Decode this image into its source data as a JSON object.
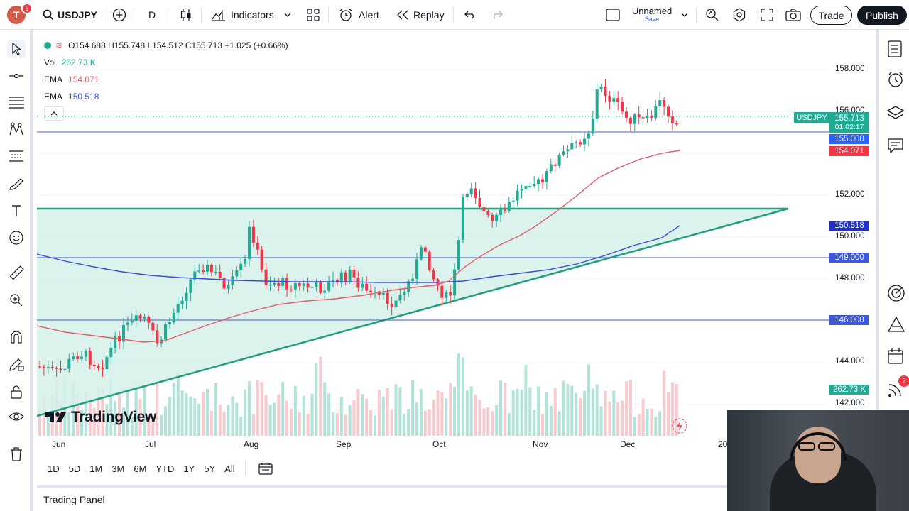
{
  "toolbar": {
    "avatar_letter": "T",
    "avatar_badge": "6",
    "symbol": "USDJPY",
    "interval": "D",
    "indicators_label": "Indicators",
    "alert_label": "Alert",
    "replay_label": "Replay",
    "layout_name": "Unnamed",
    "layout_save": "Save",
    "trade_label": "Trade",
    "publish_label": "Publish"
  },
  "legend": {
    "ohlc": "O154.688 H155.748 L154.512 C155.713 +1.025 (+0.66%)",
    "vol_label": "Vol",
    "vol_value": "262.73 K",
    "ema1_label": "EMA",
    "ema1_value": "154.071",
    "ema2_label": "EMA",
    "ema2_value": "150.518"
  },
  "price_axis": {
    "labels": [
      "158.000",
      "156.000",
      "152.000",
      "150.000",
      "148.000",
      "144.000",
      "142.000"
    ],
    "tags": {
      "symbol": "USDJPY",
      "last": "155.713",
      "countdown": "01:02:17",
      "line_155": "155.000",
      "ema_fast": "154.071",
      "ema_slow": "150.518",
      "line_149": "149.000",
      "line_146": "146.000",
      "volume": "262.73 K"
    }
  },
  "time_axis": {
    "labels": [
      "Jun",
      "Jul",
      "Aug",
      "Sep",
      "Oct",
      "Nov",
      "Dec",
      "20"
    ]
  },
  "watermark": "TradingView",
  "ranges": [
    "1D",
    "5D",
    "1M",
    "3M",
    "6M",
    "YTD",
    "1Y",
    "5Y",
    "All"
  ],
  "trading_panel": "Trading Panel",
  "colors": {
    "up": "#22ab94",
    "down": "#f23645",
    "ema_fast": "#e35d6a",
    "ema_slow": "#3c4ed6",
    "hline": "#4a5bd0",
    "triangle_fill": "#d5f0ea",
    "triangle_line": "#1fa07c"
  }
}
